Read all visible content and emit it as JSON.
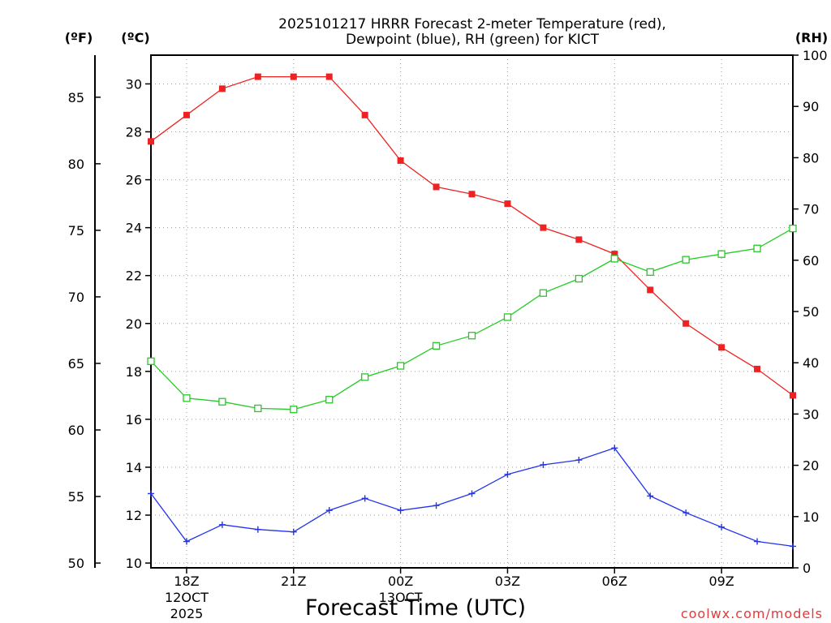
{
  "chart_data": {
    "type": "line",
    "title_line1": "2025101217 HRRR Forecast 2-meter Temperature (red),",
    "title_line2": "Dewpoint (blue), RH (green) for KICT",
    "xlabel": "Forecast Time (UTC)",
    "credit": "coolwx.com/models",
    "unit_f": "(ºF)",
    "unit_c": "(ºC)",
    "unit_rh": "(RH)",
    "x_hours": [
      17,
      18,
      19,
      20,
      21,
      22,
      23,
      24,
      25,
      26,
      27,
      28,
      29,
      30,
      31,
      32,
      33,
      34,
      35
    ],
    "xlim": [
      17,
      35
    ],
    "x_ticks": [
      {
        "hour": 18,
        "label": "18Z",
        "sub1": "12OCT",
        "sub2": "2025"
      },
      {
        "hour": 21,
        "label": "21Z",
        "sub1": "",
        "sub2": ""
      },
      {
        "hour": 24,
        "label": "00Z",
        "sub1": "13OCT",
        "sub2": ""
      },
      {
        "hour": 27,
        "label": "03Z",
        "sub1": "",
        "sub2": ""
      },
      {
        "hour": 30,
        "label": "06Z",
        "sub1": "",
        "sub2": ""
      },
      {
        "hour": 33,
        "label": "09Z",
        "sub1": "",
        "sub2": ""
      }
    ],
    "celsius_axis": {
      "ylim": [
        9.8,
        31.2
      ],
      "ticks": [
        10,
        12,
        14,
        16,
        18,
        20,
        22,
        24,
        26,
        28,
        30
      ]
    },
    "fahrenheit_ticks": [
      50,
      55,
      60,
      65,
      70,
      75,
      80,
      85
    ],
    "rh_axis": {
      "ylim": [
        0,
        100
      ],
      "ticks": [
        0,
        10,
        20,
        30,
        40,
        50,
        60,
        70,
        80,
        90,
        100
      ]
    },
    "series": [
      {
        "name": "Temperature",
        "color": "#ee2222",
        "axis": "celsius",
        "marker": "filled-square",
        "values": [
          27.6,
          28.7,
          29.8,
          30.3,
          30.3,
          30.3,
          28.7,
          26.8,
          25.7,
          25.4,
          25.0,
          24.0,
          23.5,
          22.9,
          21.4,
          20.0,
          19.0,
          18.1,
          17.0
        ]
      },
      {
        "name": "Dewpoint",
        "color": "#2233ee",
        "axis": "celsius",
        "marker": "plus",
        "values": [
          12.9,
          10.9,
          11.6,
          11.4,
          11.3,
          12.2,
          12.7,
          12.2,
          12.4,
          12.9,
          13.7,
          14.1,
          14.3,
          14.8,
          12.8,
          12.1,
          11.5,
          10.9,
          10.7
        ]
      },
      {
        "name": "RH",
        "color": "#22cc22",
        "axis": "rh",
        "marker": "open-square",
        "values": [
          40.3,
          33.1,
          32.4,
          31.1,
          30.9,
          32.8,
          37.2,
          39.4,
          43.3,
          45.3,
          48.9,
          53.6,
          56.4,
          60.3,
          57.7,
          60.1,
          61.2,
          62.3,
          66.2
        ]
      }
    ]
  }
}
